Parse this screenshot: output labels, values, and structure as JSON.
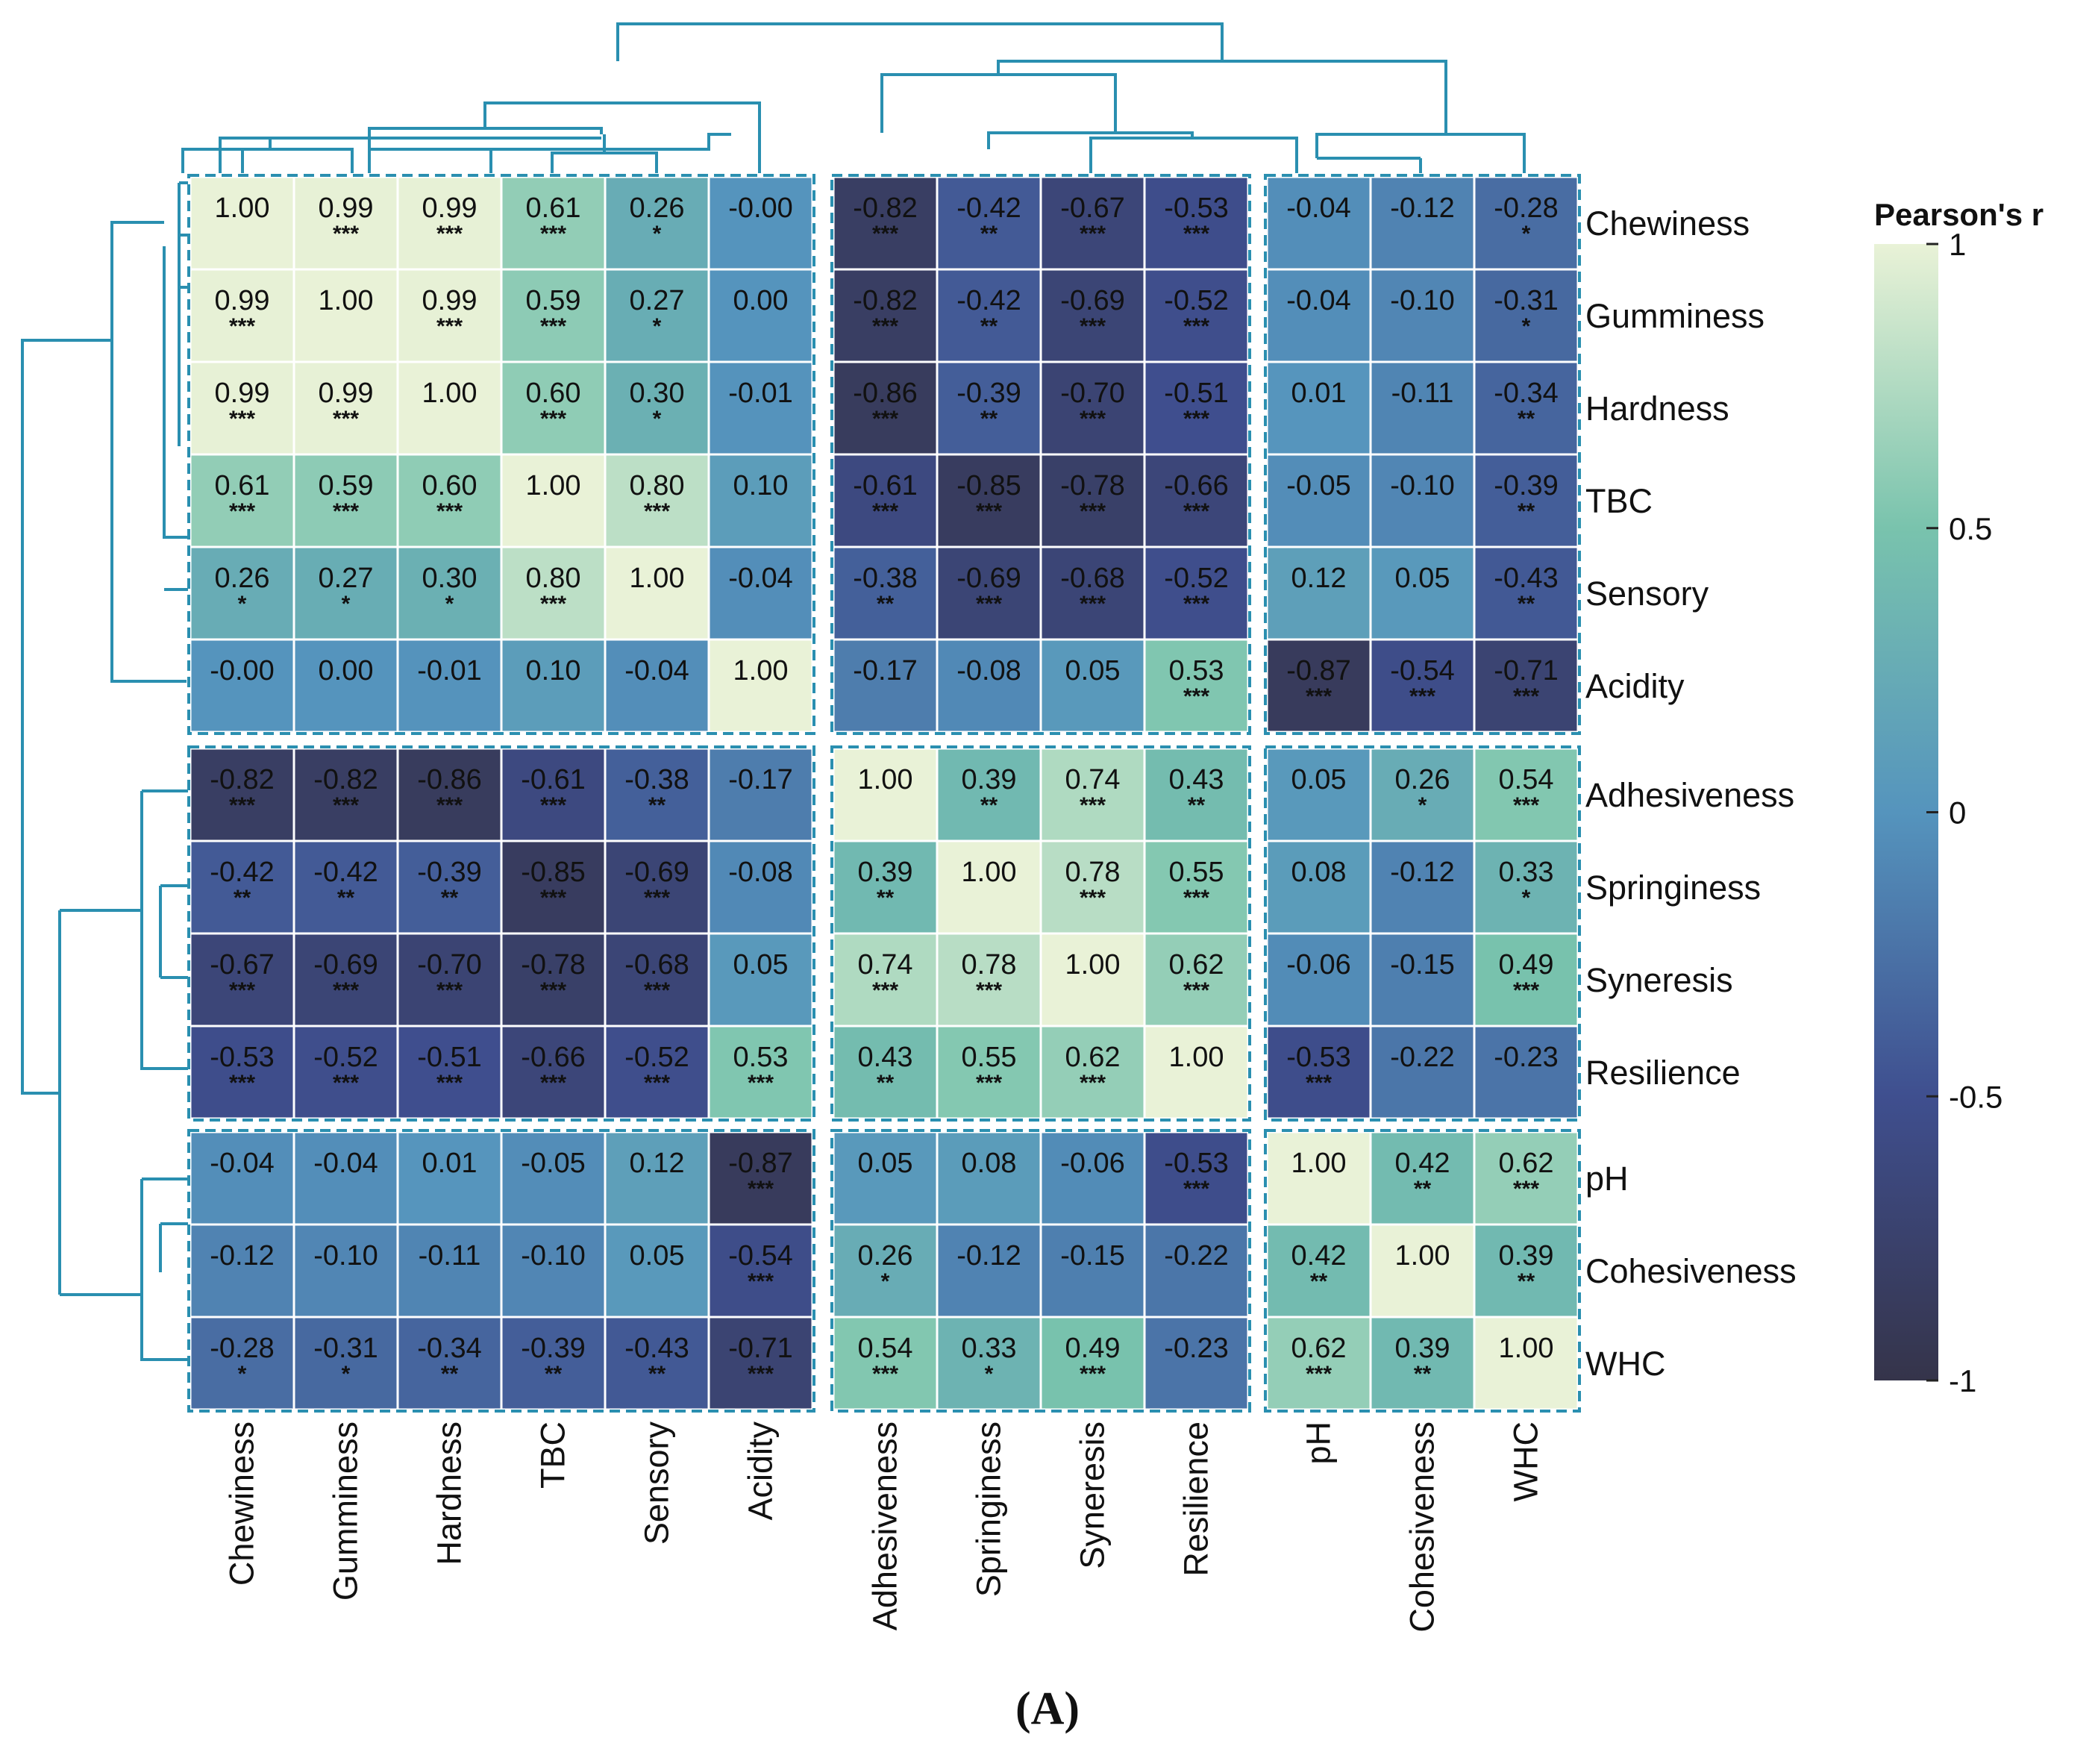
{
  "chart_data": {
    "type": "heatmap",
    "title": "",
    "legend": {
      "title": "Pearson's r",
      "ticks": [
        "1",
        "0.5",
        "0",
        "-0.5",
        "-1"
      ],
      "range": [
        -1,
        1
      ],
      "placement": "right"
    },
    "colors": {
      "low": "#35344a",
      "lowmid": "#3f4f8f",
      "mid": "#5594bd",
      "highmid": "#79c3ad",
      "high": "#e9f2d7",
      "dendrogram": "#2a8fb0"
    },
    "rows": [
      "Chewiness",
      "Gumminess",
      "Hardness",
      "TBC",
      "Sensory",
      "Acidity",
      "Adhesiveness",
      "Springiness",
      "Syneresis",
      "Resilience",
      "pH",
      "Cohesiveness",
      "WHC"
    ],
    "columns": [
      "Chewiness",
      "Gumminess",
      "Hardness",
      "TBC",
      "Sensory",
      "Acidity",
      "Adhesiveness",
      "Springiness",
      "Syneresis",
      "Resilience",
      "pH",
      "Cohesiveness",
      "WHC"
    ],
    "cluster_blocks": [
      [
        "Chewiness",
        "Gumminess",
        "Hardness",
        "TBC",
        "Sensory",
        "Acidity"
      ],
      [
        "Adhesiveness",
        "Springiness",
        "Syneresis",
        "Resilience"
      ],
      [
        "pH",
        "Cohesiveness",
        "WHC"
      ]
    ],
    "values": [
      [
        "1.00",
        "0.99",
        "0.99",
        "0.61",
        "0.26",
        "-0.00",
        "-0.82",
        "-0.42",
        "-0.67",
        "-0.53",
        "-0.04",
        "-0.12",
        "-0.28"
      ],
      [
        "0.99",
        "1.00",
        "0.99",
        "0.59",
        "0.27",
        "0.00",
        "-0.82",
        "-0.42",
        "-0.69",
        "-0.52",
        "-0.04",
        "-0.10",
        "-0.31"
      ],
      [
        "0.99",
        "0.99",
        "1.00",
        "0.60",
        "0.30",
        "-0.01",
        "-0.86",
        "-0.39",
        "-0.70",
        "-0.51",
        "0.01",
        "-0.11",
        "-0.34"
      ],
      [
        "0.61",
        "0.59",
        "0.60",
        "1.00",
        "0.80",
        "0.10",
        "-0.61",
        "-0.85",
        "-0.78",
        "-0.66",
        "-0.05",
        "-0.10",
        "-0.39"
      ],
      [
        "0.26",
        "0.27",
        "0.30",
        "0.80",
        "1.00",
        "-0.04",
        "-0.38",
        "-0.69",
        "-0.68",
        "-0.52",
        "0.12",
        "0.05",
        "-0.43"
      ],
      [
        "-0.00",
        "0.00",
        "-0.01",
        "0.10",
        "-0.04",
        "1.00",
        "-0.17",
        "-0.08",
        "0.05",
        "0.53",
        "-0.87",
        "-0.54",
        "-0.71"
      ],
      [
        "-0.82",
        "-0.82",
        "-0.86",
        "-0.61",
        "-0.38",
        "-0.17",
        "1.00",
        "0.39",
        "0.74",
        "0.43",
        "0.05",
        "0.26",
        "0.54"
      ],
      [
        "-0.42",
        "-0.42",
        "-0.39",
        "-0.85",
        "-0.69",
        "-0.08",
        "0.39",
        "1.00",
        "0.78",
        "0.55",
        "0.08",
        "-0.12",
        "0.33"
      ],
      [
        "-0.67",
        "-0.69",
        "-0.70",
        "-0.78",
        "-0.68",
        "0.05",
        "0.74",
        "0.78",
        "1.00",
        "0.62",
        "-0.06",
        "-0.15",
        "0.49"
      ],
      [
        "-0.53",
        "-0.52",
        "-0.51",
        "-0.66",
        "-0.52",
        "0.53",
        "0.43",
        "0.55",
        "0.62",
        "1.00",
        "-0.53",
        "-0.22",
        "-0.23"
      ],
      [
        "-0.04",
        "-0.04",
        "0.01",
        "-0.05",
        "0.12",
        "-0.87",
        "0.05",
        "0.08",
        "-0.06",
        "-0.53",
        "1.00",
        "0.42",
        "0.62"
      ],
      [
        "-0.12",
        "-0.10",
        "-0.11",
        "-0.10",
        "0.05",
        "-0.54",
        "0.26",
        "-0.12",
        "-0.15",
        "-0.22",
        "0.42",
        "1.00",
        "0.39"
      ],
      [
        "-0.28",
        "-0.31",
        "-0.34",
        "-0.39",
        "-0.43",
        "-0.71",
        "0.54",
        "0.33",
        "0.49",
        "-0.23",
        "0.62",
        "0.39",
        "1.00"
      ]
    ],
    "significance": [
      [
        "",
        "***",
        "***",
        "***",
        "*",
        "",
        "***",
        "**",
        "***",
        "***",
        "",
        "",
        "*"
      ],
      [
        "***",
        "",
        "***",
        "***",
        "*",
        "",
        "***",
        "**",
        "***",
        "***",
        "",
        "",
        "*"
      ],
      [
        "***",
        "***",
        "",
        "***",
        "*",
        "",
        "***",
        "**",
        "***",
        "***",
        "",
        "",
        "**"
      ],
      [
        "***",
        "***",
        "***",
        "",
        "***",
        "",
        "***",
        "***",
        "***",
        "***",
        "",
        "",
        "**"
      ],
      [
        "*",
        "*",
        "*",
        "***",
        "",
        "",
        "**",
        "***",
        "***",
        "***",
        "",
        "",
        "**"
      ],
      [
        "",
        "",
        "",
        "",
        "",
        "",
        "",
        "",
        "",
        "***",
        "***",
        "***",
        "***"
      ],
      [
        "***",
        "***",
        "***",
        "***",
        "**",
        "",
        "",
        "**",
        "***",
        "**",
        "",
        "*",
        "***"
      ],
      [
        "**",
        "**",
        "**",
        "***",
        "***",
        "",
        "**",
        "",
        "***",
        "***",
        "",
        "",
        "*"
      ],
      [
        "***",
        "***",
        "***",
        "***",
        "***",
        "",
        "***",
        "***",
        "",
        "***",
        "",
        "",
        "***"
      ],
      [
        "***",
        "***",
        "***",
        "***",
        "***",
        "***",
        "**",
        "***",
        "***",
        "",
        "***",
        "",
        ""
      ],
      [
        "",
        "",
        "",
        "",
        "",
        "***",
        "",
        "",
        "",
        "***",
        "",
        "**",
        "***"
      ],
      [
        "",
        "",
        "",
        "",
        "",
        "***",
        "*",
        "",
        "",
        "",
        "**",
        "",
        "**"
      ],
      [
        "*",
        "*",
        "**",
        "**",
        "**",
        "***",
        "***",
        "*",
        "***",
        "",
        "***",
        "**",
        ""
      ]
    ]
  },
  "panel_label": "(A)"
}
